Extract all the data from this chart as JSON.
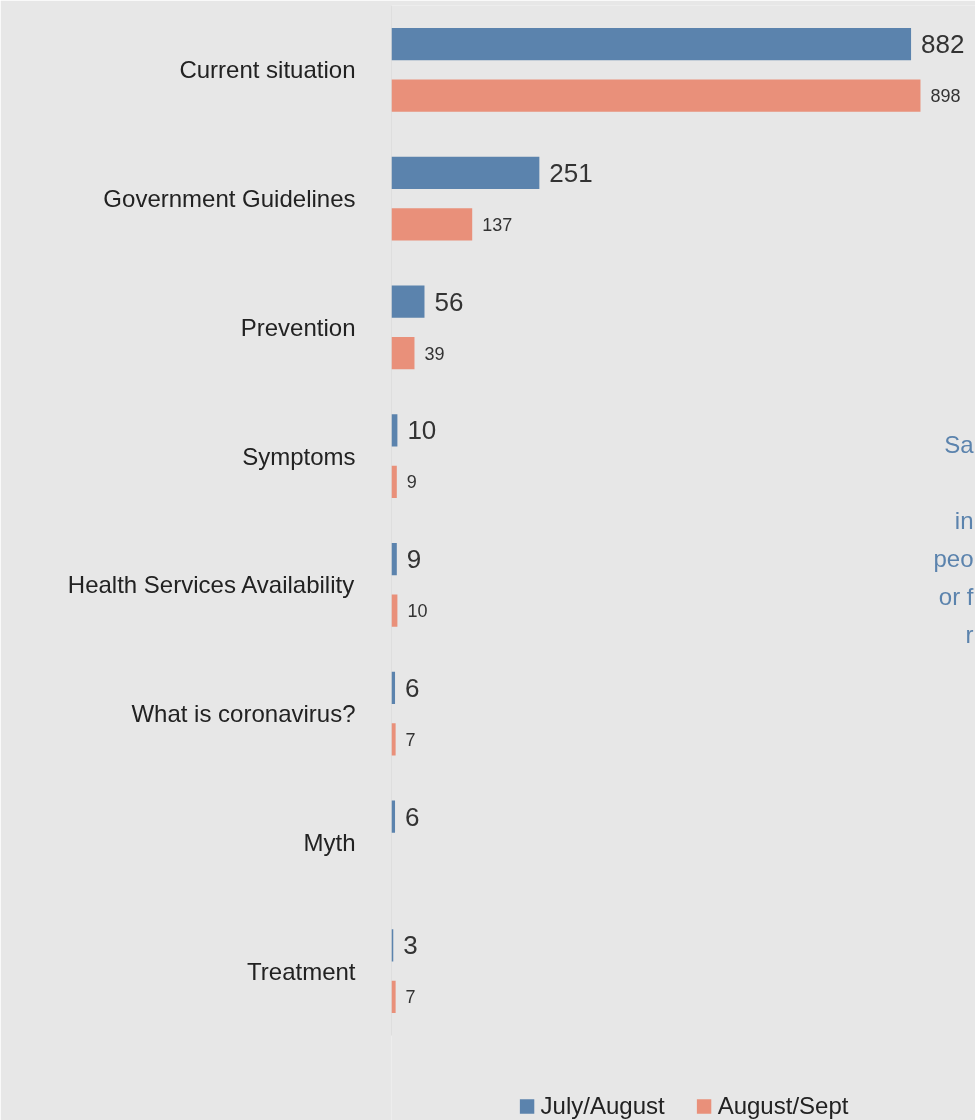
{
  "chart_data": {
    "type": "bar",
    "orientation": "horizontal",
    "data_labels": true,
    "grid": false,
    "legend": "bottom",
    "categories": [
      "Current situation",
      "Government Guidelines",
      "Prevention",
      "Symptoms",
      "Health Services Availability",
      "What is coronavirus?",
      "Myth",
      "Treatment"
    ],
    "series": [
      {
        "name": "July/August",
        "color": "#5b83ad",
        "values": [
          882,
          251,
          56,
          10,
          9,
          6,
          6,
          3
        ]
      },
      {
        "name": "August/Sept",
        "color": "#e9907a",
        "values": [
          898,
          137,
          39,
          9,
          10,
          7,
          null,
          7
        ]
      }
    ],
    "annotations": [
      "Sa\n\nin\npeo\nor f\nr"
    ]
  }
}
